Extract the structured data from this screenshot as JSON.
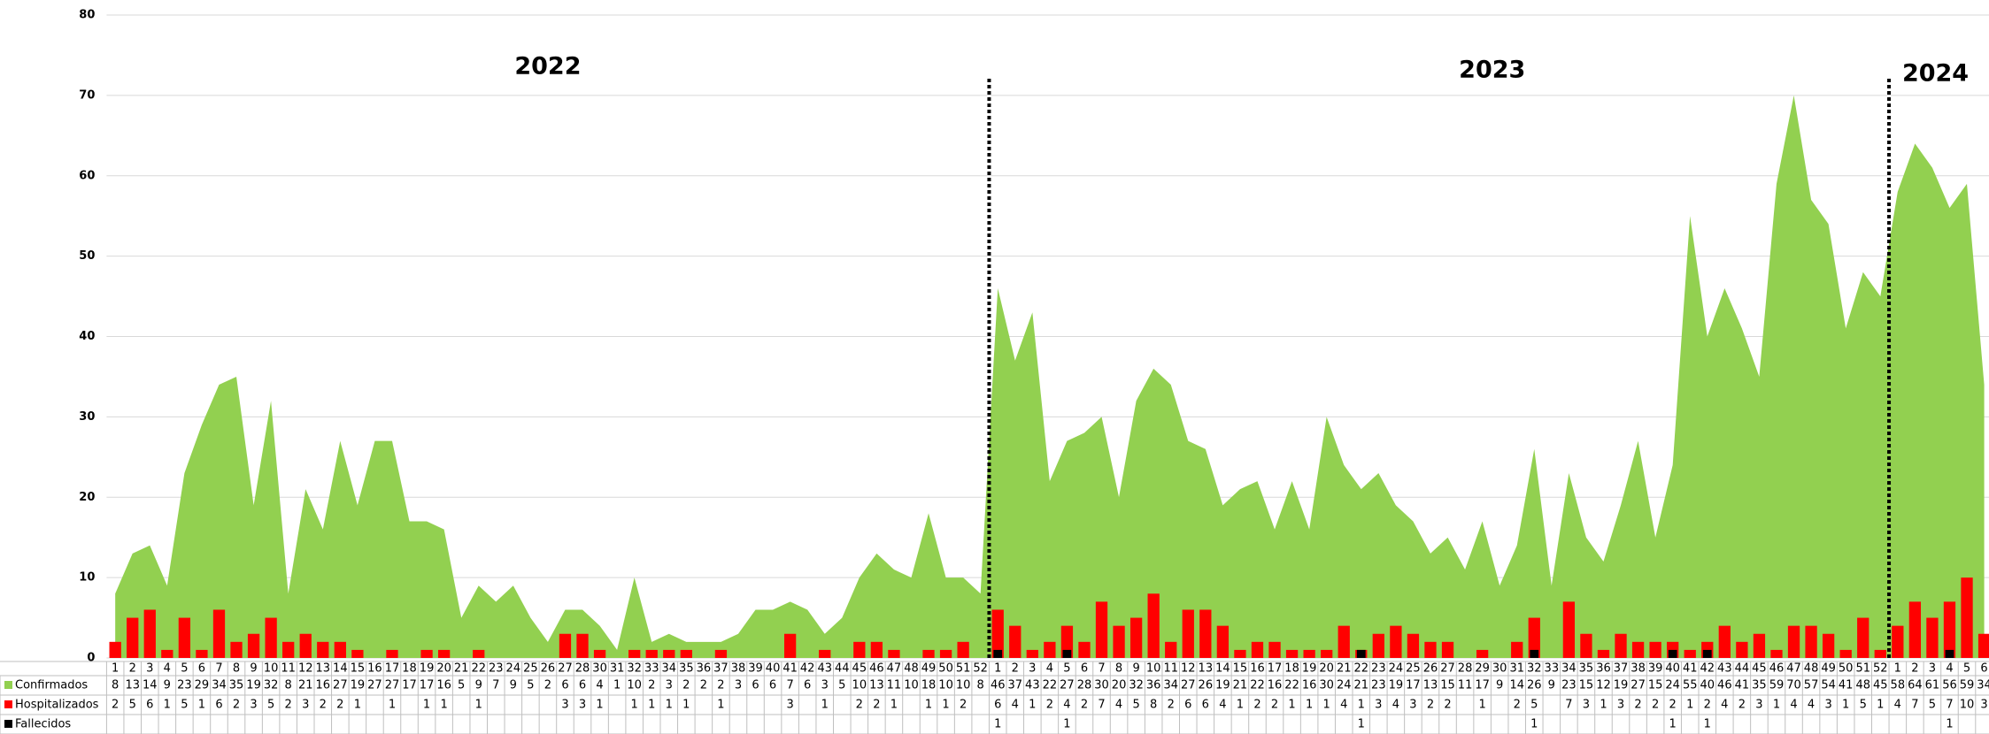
{
  "chart_data": {
    "type": "area-bar",
    "annotations": [
      "2022",
      "2023",
      "2024"
    ],
    "categories": [
      1,
      2,
      3,
      4,
      5,
      6,
      7,
      8,
      9,
      10,
      11,
      12,
      13,
      14,
      15,
      16,
      17,
      18,
      19,
      20,
      21,
      22,
      23,
      24,
      25,
      26,
      27,
      28,
      30,
      31,
      32,
      33,
      34,
      35,
      36,
      37,
      38,
      39,
      40,
      41,
      42,
      43,
      44,
      45,
      46,
      47,
      48,
      49,
      50,
      51,
      52,
      1,
      2,
      3,
      4,
      5,
      6,
      7,
      8,
      9,
      10,
      11,
      12,
      13,
      14,
      15,
      16,
      17,
      18,
      19,
      20,
      21,
      22,
      23,
      24,
      25,
      26,
      27,
      28,
      29,
      30,
      31,
      32,
      33,
      34,
      35,
      36,
      37,
      38,
      39,
      40,
      41,
      42,
      43,
      44,
      45,
      46,
      47,
      48,
      49,
      50,
      51,
      52,
      1,
      2,
      3,
      4,
      5,
      6
    ],
    "series": [
      {
        "name": "Confirmados",
        "color": "#92d050",
        "kind": "area",
        "values": [
          8,
          13,
          14,
          9,
          23,
          29,
          34,
          35,
          19,
          32,
          8,
          21,
          16,
          27,
          19,
          27,
          27,
          17,
          17,
          16,
          5,
          9,
          7,
          9,
          5,
          2,
          6,
          6,
          4,
          1,
          10,
          2,
          3,
          2,
          2,
          2,
          3,
          6,
          6,
          7,
          6,
          3,
          5,
          10,
          13,
          11,
          10,
          18,
          10,
          10,
          8,
          46,
          37,
          43,
          22,
          27,
          28,
          30,
          20,
          32,
          36,
          34,
          27,
          26,
          19,
          21,
          22,
          16,
          22,
          16,
          30,
          24,
          21,
          23,
          19,
          17,
          13,
          15,
          11,
          17,
          9,
          14,
          26,
          9,
          23,
          15,
          12,
          19,
          27,
          15,
          24,
          55,
          40,
          46,
          41,
          35,
          59,
          70,
          57,
          54,
          41,
          48,
          45,
          58,
          64,
          61,
          56,
          59,
          34
        ]
      },
      {
        "name": "Hospitalizados",
        "color": "#ff0000",
        "kind": "bar",
        "values": [
          2,
          5,
          6,
          1,
          5,
          1,
          6,
          2,
          3,
          5,
          2,
          3,
          2,
          2,
          1,
          null,
          1,
          null,
          1,
          1,
          null,
          1,
          null,
          null,
          null,
          null,
          3,
          3,
          1,
          null,
          1,
          1,
          1,
          1,
          null,
          1,
          null,
          null,
          null,
          3,
          null,
          1,
          null,
          2,
          2,
          1,
          null,
          1,
          1,
          2,
          null,
          6,
          4,
          1,
          2,
          4,
          2,
          7,
          4,
          5,
          8,
          2,
          6,
          6,
          4,
          1,
          2,
          2,
          1,
          1,
          1,
          4,
          1,
          3,
          4,
          3,
          2,
          2,
          null,
          1,
          null,
          2,
          5,
          null,
          7,
          3,
          1,
          3,
          2,
          2,
          2,
          1,
          2,
          4,
          2,
          3,
          1,
          4,
          4,
          3,
          1,
          5,
          1,
          4,
          7,
          5,
          7,
          10,
          3
        ]
      },
      {
        "name": "Fallecidos",
        "color": "#000000",
        "kind": "bar",
        "values": [
          null,
          null,
          null,
          null,
          null,
          null,
          null,
          null,
          null,
          null,
          null,
          null,
          null,
          null,
          null,
          null,
          null,
          null,
          null,
          null,
          null,
          null,
          null,
          null,
          null,
          null,
          null,
          null,
          null,
          null,
          null,
          null,
          null,
          null,
          null,
          null,
          null,
          null,
          null,
          null,
          null,
          null,
          null,
          null,
          null,
          null,
          null,
          null,
          null,
          null,
          null,
          1,
          null,
          null,
          null,
          1,
          null,
          null,
          null,
          null,
          null,
          null,
          null,
          null,
          null,
          null,
          null,
          null,
          null,
          null,
          null,
          null,
          1,
          null,
          null,
          null,
          null,
          null,
          null,
          null,
          null,
          null,
          1,
          null,
          null,
          null,
          null,
          null,
          null,
          null,
          1,
          null,
          1,
          null,
          null,
          null,
          null,
          null,
          null,
          null,
          null,
          null,
          null,
          null,
          null,
          null,
          1,
          null,
          null
        ]
      }
    ],
    "ylim": [
      0,
      80
    ],
    "yticks": [
      0,
      10,
      20,
      30,
      40,
      50,
      60,
      70,
      80
    ],
    "grid": true
  }
}
